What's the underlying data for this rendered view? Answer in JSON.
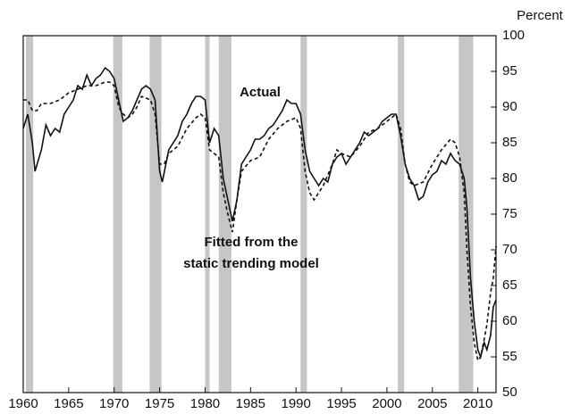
{
  "chart_data": {
    "type": "line",
    "y_label": "Percent",
    "xlim": [
      1960,
      2012
    ],
    "xticks": [
      1960,
      1965,
      1970,
      1975,
      1980,
      1985,
      1990,
      1995,
      2000,
      2005,
      2010
    ],
    "ylim": [
      50,
      100
    ],
    "yticks": [
      50,
      55,
      60,
      65,
      70,
      75,
      80,
      85,
      90,
      95,
      100
    ],
    "recessions": [
      [
        1960.3,
        1961.1
      ],
      [
        1969.9,
        1970.9
      ],
      [
        1973.9,
        1975.2
      ],
      [
        1980.0,
        1980.5
      ],
      [
        1981.5,
        1982.9
      ],
      [
        1990.5,
        1991.2
      ],
      [
        2001.2,
        2001.9
      ],
      [
        2007.9,
        2009.5
      ]
    ],
    "recession_color": "#c6c6c6",
    "annotations": [
      "Actual",
      "Fitted from the",
      "static trending model"
    ],
    "series": [
      {
        "color": "#111111",
        "dash": false,
        "x": [
          1960.0,
          1960.5,
          1961.0,
          1961.3,
          1962.0,
          1962.5,
          1963.0,
          1963.5,
          1964.0,
          1964.5,
          1965.0,
          1965.5,
          1966.0,
          1966.5,
          1967.0,
          1967.5,
          1968.0,
          1968.5,
          1969.0,
          1969.5,
          1970.0,
          1970.5,
          1971.0,
          1971.5,
          1972.0,
          1972.5,
          1973.0,
          1973.5,
          1974.0,
          1974.5,
          1975.0,
          1975.3,
          1976.0,
          1976.5,
          1977.0,
          1977.5,
          1978.0,
          1978.5,
          1979.0,
          1979.5,
          1980.0,
          1980.5,
          1981.0,
          1981.5,
          1982.0,
          1982.5,
          1983.0,
          1983.5,
          1984.0,
          1984.5,
          1985.0,
          1985.5,
          1986.0,
          1986.5,
          1987.0,
          1987.5,
          1988.0,
          1988.5,
          1989.0,
          1989.5,
          1990.0,
          1990.5,
          1991.0,
          1991.5,
          1992.0,
          1992.5,
          1993.0,
          1993.5,
          1994.0,
          1994.5,
          1995.0,
          1995.5,
          1996.0,
          1996.5,
          1997.0,
          1997.5,
          1998.0,
          1998.5,
          1999.0,
          1999.5,
          2000.0,
          2000.5,
          2001.0,
          2001.5,
          2002.0,
          2002.5,
          2003.0,
          2003.5,
          2004.0,
          2004.5,
          2005.0,
          2005.5,
          2006.0,
          2006.5,
          2007.0,
          2007.5,
          2008.0,
          2008.5,
          2008.8,
          2009.2,
          2009.6,
          2010.0,
          2010.3,
          2010.7,
          2011.0,
          2011.4,
          2011.7,
          2012.0
        ],
        "values": [
          87,
          89,
          85,
          81,
          84,
          87.5,
          86,
          87,
          86.5,
          89,
          90,
          91,
          93,
          92.5,
          94.5,
          93,
          94,
          94.5,
          95.5,
          95,
          94,
          91,
          88,
          88.5,
          89.5,
          91,
          92.5,
          93,
          92.5,
          91,
          81,
          79.5,
          84,
          85,
          86,
          88,
          89,
          90.5,
          91.5,
          91.5,
          91,
          85,
          87,
          86,
          80,
          77,
          74,
          77,
          82,
          83,
          84,
          85.5,
          85.5,
          86,
          87,
          87.5,
          88.5,
          89.5,
          91,
          90.5,
          90.5,
          89,
          84,
          81,
          80,
          79,
          80,
          79.5,
          82,
          83,
          83.5,
          82,
          83,
          84,
          85,
          86.5,
          86,
          86.5,
          87,
          88,
          88.5,
          89,
          89,
          86,
          82,
          80,
          79,
          77,
          77.5,
          79.5,
          80.5,
          81,
          82.5,
          82,
          83.5,
          82.5,
          82,
          80,
          76,
          66,
          60,
          56,
          55,
          57,
          56,
          58,
          62,
          63
        ]
      },
      {
        "color": "#111111",
        "dash": true,
        "x": [
          1960.0,
          1960.5,
          1961.0,
          1961.5,
          1962.0,
          1963.0,
          1964.0,
          1965.0,
          1966.0,
          1967.0,
          1968.0,
          1969.0,
          1969.5,
          1970.0,
          1970.5,
          1971.0,
          1971.5,
          1972.0,
          1972.5,
          1973.0,
          1974.0,
          1974.5,
          1975.0,
          1975.5,
          1976.0,
          1977.0,
          1978.0,
          1979.0,
          1979.5,
          1980.0,
          1980.5,
          1981.0,
          1981.5,
          1982.0,
          1982.5,
          1983.0,
          1983.5,
          1984.0,
          1985.0,
          1986.0,
          1987.0,
          1988.0,
          1989.0,
          1990.0,
          1990.5,
          1991.0,
          1991.5,
          1992.0,
          1993.0,
          1994.0,
          1994.5,
          1995.0,
          1996.0,
          1997.0,
          1998.0,
          1999.0,
          2000.0,
          2001.0,
          2001.5,
          2002.0,
          2002.5,
          2003.0,
          2004.0,
          2005.0,
          2006.0,
          2007.0,
          2007.5,
          2008.0,
          2008.5,
          2008.8,
          2009.2,
          2009.6,
          2010.0,
          2010.3,
          2010.7,
          2011.0,
          2011.4,
          2011.7,
          2012.0
        ],
        "values": [
          91,
          91,
          89.5,
          89.5,
          90.5,
          90.5,
          91,
          92,
          92.5,
          93,
          93,
          93.5,
          93.5,
          93,
          90,
          89,
          88.5,
          89,
          90,
          91.5,
          91,
          89,
          82,
          82,
          83.5,
          84.5,
          87,
          88.5,
          89,
          88.5,
          84,
          83.5,
          83,
          78,
          75,
          72.5,
          77,
          81,
          82.5,
          83,
          85.5,
          87,
          88,
          88.5,
          87,
          81,
          78,
          77,
          79,
          82,
          84,
          83.5,
          83,
          84.5,
          86.5,
          87,
          88,
          89,
          87,
          82,
          79.5,
          79,
          79.5,
          82,
          84,
          85.5,
          85,
          83,
          78,
          70,
          62,
          57,
          54.5,
          55,
          57.5,
          59.5,
          64,
          66,
          70.5
        ]
      }
    ]
  }
}
